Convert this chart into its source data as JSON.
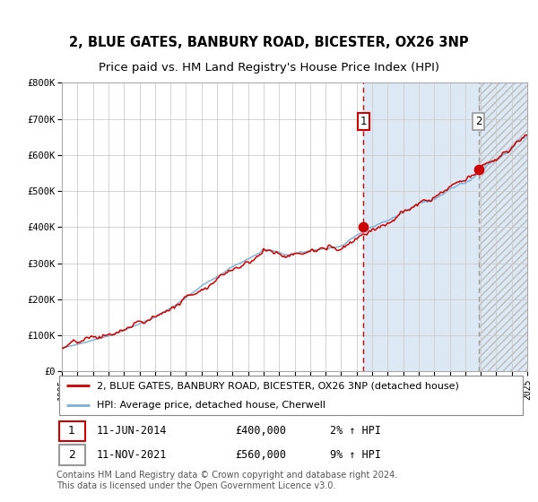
{
  "title": "2, BLUE GATES, BANBURY ROAD, BICESTER, OX26 3NP",
  "subtitle": "Price paid vs. HM Land Registry's House Price Index (HPI)",
  "legend_line1": "2, BLUE GATES, BANBURY ROAD, BICESTER, OX26 3NP (detached house)",
  "legend_line2": "HPI: Average price, detached house, Cherwell",
  "annotation1_label": "1",
  "annotation1_date": "11-JUN-2014",
  "annotation1_price": "£400,000",
  "annotation1_hpi": "2% ↑ HPI",
  "annotation1_year": 2014.44,
  "annotation1_value": 400000,
  "annotation2_label": "2",
  "annotation2_date": "11-NOV-2021",
  "annotation2_price": "£560,000",
  "annotation2_hpi": "9% ↑ HPI",
  "annotation2_year": 2021.86,
  "annotation2_value": 560000,
  "xmin": 1995,
  "xmax": 2025,
  "ymin": 0,
  "ymax": 800000,
  "yticks": [
    0,
    100000,
    200000,
    300000,
    400000,
    500000,
    600000,
    700000,
    800000
  ],
  "ytick_labels": [
    "£0",
    "£100K",
    "£200K",
    "£300K",
    "£400K",
    "£500K",
    "£600K",
    "£700K",
    "£800K"
  ],
  "hpi_color": "#7BAFD4",
  "price_color": "#CC0000",
  "vline1_color": "#CC0000",
  "vline2_color": "#999999",
  "bg_color": "#FFFFFF",
  "shaded_bg": "#DCE9F5",
  "footer": "Contains HM Land Registry data © Crown copyright and database right 2024.\nThis data is licensed under the Open Government Licence v3.0.",
  "title_fontsize": 10.5,
  "subtitle_fontsize": 9.5,
  "tick_fontsize": 7.5,
  "legend_fontsize": 8,
  "ann_fontsize": 8.5,
  "footer_fontsize": 7
}
